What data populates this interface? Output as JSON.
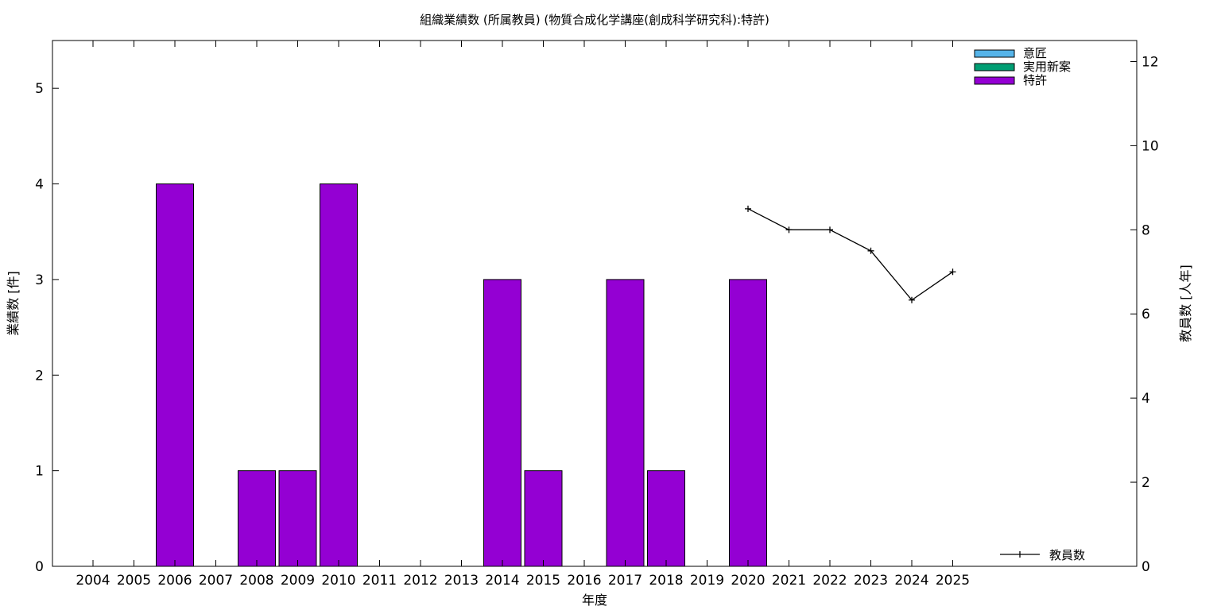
{
  "chart_data": {
    "type": "bar",
    "title": "組織業績数 (所属教員) (物質合成化学講座(創成科学研究科):特許)",
    "xlabel": "年度",
    "ylabel": "業績数 [件]",
    "y2label": "教員数 [人年]",
    "categories": [
      "2004",
      "2005",
      "2006",
      "2007",
      "2008",
      "2009",
      "2010",
      "2011",
      "2012",
      "2013",
      "2014",
      "2015",
      "2016",
      "2017",
      "2018",
      "2019",
      "2020",
      "2021",
      "2022",
      "2023",
      "2024",
      "2025"
    ],
    "ylim": [
      0,
      5.5
    ],
    "yticks": [
      0,
      1,
      2,
      3,
      4,
      5
    ],
    "y2lim": [
      0,
      12.5
    ],
    "y2ticks": [
      0,
      2,
      4,
      6,
      8,
      10,
      12
    ],
    "grid": false,
    "legend_position": "top-right",
    "series": [
      {
        "name": "意匠",
        "kind": "bar",
        "color": "#56b4e9",
        "values": [
          0,
          0,
          0,
          0,
          0,
          0,
          0,
          0,
          0,
          0,
          0,
          0,
          0,
          0,
          0,
          0,
          0,
          0,
          0,
          0,
          0,
          0
        ]
      },
      {
        "name": "実用新案",
        "kind": "bar",
        "color": "#009e73",
        "values": [
          0,
          0,
          0,
          0,
          0,
          0,
          0,
          0,
          0,
          0,
          0,
          0,
          0,
          0,
          0,
          0,
          0,
          0,
          0,
          0,
          0,
          0
        ]
      },
      {
        "name": "特許",
        "kind": "bar",
        "color": "#9400d3",
        "values": [
          0,
          0,
          4,
          0,
          1,
          1,
          4,
          0,
          0,
          0,
          3,
          1,
          0,
          3,
          1,
          0,
          3,
          0,
          0,
          0,
          0,
          0
        ]
      },
      {
        "name": "教員数",
        "kind": "line",
        "axis": "y2",
        "color": "#000000",
        "x": [
          "2020",
          "2021",
          "2022",
          "2023",
          "2024",
          "2025"
        ],
        "values": [
          8.5,
          8.0,
          8.0,
          7.5,
          6.33,
          7.0
        ]
      }
    ]
  }
}
